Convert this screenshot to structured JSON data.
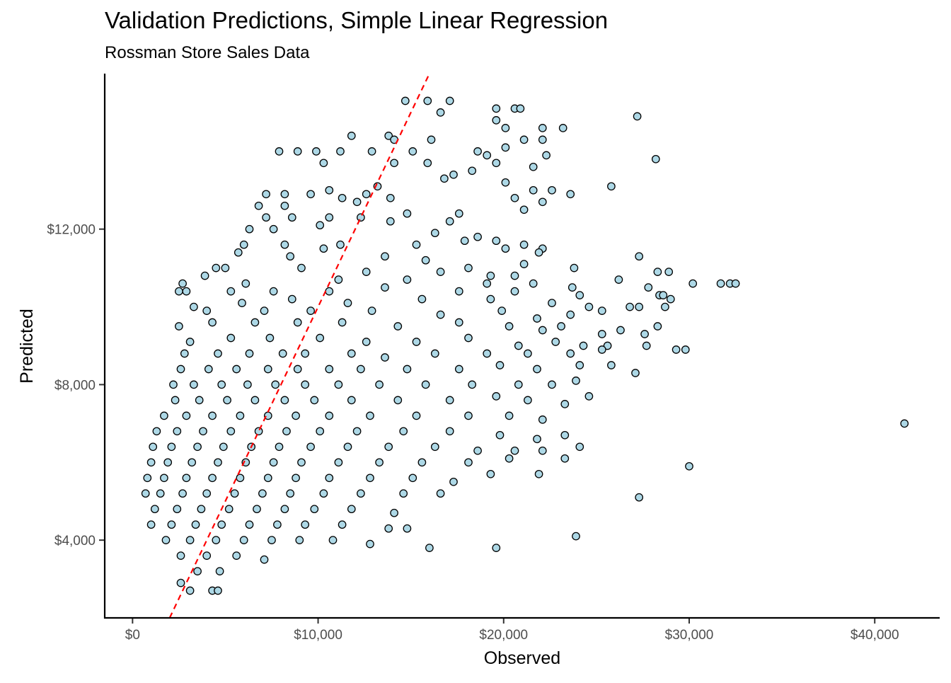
{
  "chart_data": {
    "type": "scatter",
    "title": "Validation Predictions, Simple Linear Regression",
    "subtitle": "Rossman Store Sales Data",
    "xlabel": "Observed",
    "ylabel": "Predicted",
    "xlim": [
      -1500,
      43500
    ],
    "ylim": [
      2000,
      16000
    ],
    "x_ticks": [
      0,
      10000,
      20000,
      30000,
      40000
    ],
    "x_tick_labels": [
      "$0",
      "$10,000",
      "$20,000",
      "$30,000",
      "$40,000"
    ],
    "y_ticks": [
      4000,
      8000,
      12000
    ],
    "y_tick_labels": [
      "$4,000",
      "$8,000",
      "$12,000"
    ],
    "grid": false,
    "legend": "none",
    "point_fill": "#add8e6",
    "point_stroke": "#000000",
    "reference_line": {
      "slope": 1,
      "intercept": 0,
      "color": "#ff0000",
      "style": "dashed"
    },
    "points": [
      [
        14700,
        15300
      ],
      [
        15900,
        15300
      ],
      [
        17100,
        15300
      ],
      [
        16600,
        15000
      ],
      [
        19600,
        15100
      ],
      [
        20600,
        15100
      ],
      [
        20900,
        15100
      ],
      [
        27200,
        14900
      ],
      [
        19600,
        14800
      ],
      [
        20100,
        14600
      ],
      [
        22100,
        14600
      ],
      [
        23200,
        14600
      ],
      [
        11800,
        14400
      ],
      [
        13800,
        14400
      ],
      [
        14100,
        14300
      ],
      [
        16100,
        14300
      ],
      [
        20100,
        14100
      ],
      [
        21100,
        14300
      ],
      [
        22100,
        14300
      ],
      [
        7900,
        14000
      ],
      [
        8900,
        14000
      ],
      [
        9900,
        14000
      ],
      [
        11200,
        14000
      ],
      [
        12900,
        14000
      ],
      [
        15100,
        14000
      ],
      [
        18600,
        14000
      ],
      [
        19100,
        13900
      ],
      [
        22300,
        13900
      ],
      [
        28200,
        13800
      ],
      [
        10300,
        13700
      ],
      [
        14100,
        13700
      ],
      [
        15900,
        13700
      ],
      [
        19600,
        13700
      ],
      [
        21600,
        13600
      ],
      [
        13200,
        13100
      ],
      [
        16800,
        13300
      ],
      [
        17300,
        13400
      ],
      [
        18300,
        13500
      ],
      [
        20100,
        13200
      ],
      [
        25800,
        13100
      ],
      [
        7200,
        12900
      ],
      [
        8200,
        12900
      ],
      [
        9600,
        12900
      ],
      [
        10600,
        13000
      ],
      [
        11300,
        12800
      ],
      [
        12600,
        12900
      ],
      [
        21600,
        13000
      ],
      [
        22600,
        13000
      ],
      [
        23600,
        12900
      ],
      [
        6800,
        12600
      ],
      [
        8200,
        12600
      ],
      [
        12100,
        12700
      ],
      [
        13900,
        12800
      ],
      [
        20600,
        12800
      ],
      [
        22100,
        12700
      ],
      [
        7200,
        12300
      ],
      [
        8600,
        12300
      ],
      [
        10600,
        12300
      ],
      [
        12300,
        12300
      ],
      [
        14800,
        12400
      ],
      [
        17600,
        12400
      ],
      [
        21100,
        12500
      ],
      [
        6300,
        12000
      ],
      [
        7600,
        12000
      ],
      [
        10100,
        12100
      ],
      [
        13900,
        12200
      ],
      [
        17100,
        12200
      ],
      [
        16300,
        11900
      ],
      [
        18600,
        11800
      ],
      [
        19600,
        11700
      ],
      [
        21100,
        11600
      ],
      [
        22100,
        11500
      ],
      [
        6000,
        11600
      ],
      [
        8200,
        11600
      ],
      [
        11200,
        11600
      ],
      [
        15300,
        11600
      ],
      [
        17900,
        11700
      ],
      [
        20100,
        11500
      ],
      [
        21900,
        11400
      ],
      [
        5700,
        11400
      ],
      [
        8500,
        11300
      ],
      [
        10300,
        11500
      ],
      [
        13600,
        11300
      ],
      [
        15800,
        11200
      ],
      [
        18100,
        11000
      ],
      [
        21100,
        11100
      ],
      [
        27300,
        11300
      ],
      [
        23800,
        11000
      ],
      [
        4500,
        11000
      ],
      [
        5000,
        11000
      ],
      [
        9100,
        11000
      ],
      [
        12600,
        10900
      ],
      [
        16600,
        10900
      ],
      [
        19300,
        10800
      ],
      [
        20600,
        10800
      ],
      [
        26200,
        10700
      ],
      [
        28300,
        10900
      ],
      [
        28900,
        10900
      ],
      [
        2700,
        10600
      ],
      [
        3900,
        10800
      ],
      [
        6100,
        10600
      ],
      [
        11100,
        10700
      ],
      [
        14800,
        10700
      ],
      [
        19100,
        10600
      ],
      [
        21600,
        10600
      ],
      [
        23700,
        10500
      ],
      [
        27800,
        10500
      ],
      [
        30200,
        10600
      ],
      [
        31700,
        10600
      ],
      [
        32200,
        10600
      ],
      [
        32500,
        10600
      ],
      [
        2500,
        10400
      ],
      [
        2900,
        10400
      ],
      [
        5300,
        10400
      ],
      [
        7600,
        10400
      ],
      [
        10600,
        10400
      ],
      [
        13600,
        10500
      ],
      [
        17600,
        10400
      ],
      [
        20600,
        10400
      ],
      [
        24100,
        10300
      ],
      [
        28400,
        10300
      ],
      [
        28600,
        10300
      ],
      [
        3300,
        10000
      ],
      [
        5900,
        10100
      ],
      [
        8600,
        10200
      ],
      [
        11600,
        10100
      ],
      [
        15600,
        10200
      ],
      [
        19300,
        10200
      ],
      [
        22600,
        10100
      ],
      [
        25300,
        9900
      ],
      [
        27300,
        10000
      ],
      [
        29000,
        10200
      ],
      [
        4000,
        9900
      ],
      [
        7100,
        9900
      ],
      [
        9600,
        9900
      ],
      [
        12900,
        9900
      ],
      [
        16600,
        9800
      ],
      [
        19900,
        9900
      ],
      [
        21800,
        9700
      ],
      [
        23600,
        9800
      ],
      [
        24600,
        10000
      ],
      [
        26800,
        10000
      ],
      [
        28700,
        10000
      ],
      [
        2500,
        9500
      ],
      [
        4300,
        9600
      ],
      [
        6600,
        9600
      ],
      [
        8900,
        9600
      ],
      [
        11300,
        9600
      ],
      [
        14300,
        9500
      ],
      [
        17600,
        9600
      ],
      [
        20300,
        9500
      ],
      [
        22100,
        9400
      ],
      [
        23100,
        9500
      ],
      [
        25300,
        9300
      ],
      [
        26300,
        9400
      ],
      [
        27600,
        9300
      ],
      [
        28300,
        9500
      ],
      [
        3100,
        9100
      ],
      [
        5300,
        9200
      ],
      [
        7400,
        9200
      ],
      [
        10100,
        9200
      ],
      [
        12600,
        9100
      ],
      [
        15300,
        9100
      ],
      [
        18100,
        9200
      ],
      [
        20800,
        9000
      ],
      [
        22800,
        9100
      ],
      [
        24300,
        9000
      ],
      [
        25600,
        9000
      ],
      [
        27700,
        9000
      ],
      [
        2800,
        8800
      ],
      [
        4600,
        8800
      ],
      [
        6300,
        8800
      ],
      [
        8100,
        8800
      ],
      [
        9300,
        8800
      ],
      [
        11800,
        8800
      ],
      [
        13600,
        8700
      ],
      [
        16300,
        8800
      ],
      [
        19100,
        8800
      ],
      [
        21300,
        8800
      ],
      [
        23600,
        8800
      ],
      [
        25300,
        8900
      ],
      [
        29300,
        8900
      ],
      [
        29800,
        8900
      ],
      [
        2600,
        8400
      ],
      [
        4100,
        8400
      ],
      [
        5600,
        8400
      ],
      [
        7300,
        8400
      ],
      [
        8900,
        8400
      ],
      [
        10600,
        8400
      ],
      [
        12300,
        8400
      ],
      [
        14800,
        8400
      ],
      [
        17600,
        8400
      ],
      [
        19800,
        8500
      ],
      [
        21800,
        8400
      ],
      [
        24100,
        8500
      ],
      [
        25800,
        8500
      ],
      [
        2200,
        8000
      ],
      [
        3300,
        8000
      ],
      [
        4800,
        8000
      ],
      [
        6200,
        8000
      ],
      [
        7700,
        8000
      ],
      [
        9300,
        8000
      ],
      [
        11100,
        8000
      ],
      [
        13300,
        8000
      ],
      [
        15800,
        8000
      ],
      [
        18300,
        8000
      ],
      [
        20800,
        8000
      ],
      [
        22600,
        8000
      ],
      [
        23900,
        8100
      ],
      [
        27100,
        8300
      ],
      [
        2300,
        7600
      ],
      [
        3600,
        7600
      ],
      [
        5100,
        7600
      ],
      [
        6600,
        7600
      ],
      [
        8200,
        7600
      ],
      [
        9800,
        7600
      ],
      [
        11800,
        7600
      ],
      [
        14300,
        7600
      ],
      [
        17100,
        7600
      ],
      [
        19600,
        7700
      ],
      [
        21300,
        7600
      ],
      [
        23300,
        7500
      ],
      [
        24600,
        7700
      ],
      [
        1700,
        7200
      ],
      [
        2900,
        7200
      ],
      [
        4300,
        7200
      ],
      [
        5800,
        7200
      ],
      [
        7300,
        7200
      ],
      [
        8800,
        7200
      ],
      [
        10600,
        7200
      ],
      [
        12800,
        7200
      ],
      [
        15300,
        7200
      ],
      [
        18100,
        7200
      ],
      [
        20300,
        7200
      ],
      [
        22100,
        7100
      ],
      [
        41600,
        7000
      ],
      [
        1300,
        6800
      ],
      [
        2400,
        6800
      ],
      [
        3800,
        6800
      ],
      [
        5300,
        6800
      ],
      [
        6800,
        6800
      ],
      [
        8300,
        6800
      ],
      [
        10100,
        6800
      ],
      [
        12100,
        6800
      ],
      [
        14600,
        6800
      ],
      [
        17100,
        6800
      ],
      [
        19800,
        6700
      ],
      [
        21800,
        6600
      ],
      [
        23300,
        6700
      ],
      [
        1100,
        6400
      ],
      [
        2100,
        6400
      ],
      [
        3500,
        6400
      ],
      [
        4900,
        6400
      ],
      [
        6400,
        6400
      ],
      [
        7900,
        6400
      ],
      [
        9600,
        6400
      ],
      [
        11600,
        6400
      ],
      [
        13800,
        6400
      ],
      [
        16300,
        6400
      ],
      [
        18600,
        6300
      ],
      [
        20600,
        6300
      ],
      [
        22100,
        6300
      ],
      [
        24100,
        6400
      ],
      [
        1000,
        6000
      ],
      [
        1900,
        6000
      ],
      [
        3200,
        6000
      ],
      [
        4600,
        6000
      ],
      [
        6100,
        6000
      ],
      [
        7600,
        6000
      ],
      [
        9100,
        6000
      ],
      [
        11100,
        6000
      ],
      [
        13300,
        6000
      ],
      [
        15600,
        6000
      ],
      [
        18100,
        6000
      ],
      [
        20300,
        6100
      ],
      [
        23300,
        6100
      ],
      [
        30000,
        5900
      ],
      [
        800,
        5600
      ],
      [
        1700,
        5600
      ],
      [
        2900,
        5600
      ],
      [
        4300,
        5600
      ],
      [
        5800,
        5600
      ],
      [
        7300,
        5600
      ],
      [
        8800,
        5600
      ],
      [
        10600,
        5600
      ],
      [
        12800,
        5600
      ],
      [
        15100,
        5600
      ],
      [
        17300,
        5500
      ],
      [
        19300,
        5700
      ],
      [
        21900,
        5700
      ],
      [
        700,
        5200
      ],
      [
        1500,
        5200
      ],
      [
        2700,
        5200
      ],
      [
        4000,
        5200
      ],
      [
        5500,
        5200
      ],
      [
        7000,
        5200
      ],
      [
        8500,
        5200
      ],
      [
        10300,
        5200
      ],
      [
        12300,
        5200
      ],
      [
        14600,
        5200
      ],
      [
        16600,
        5200
      ],
      [
        27300,
        5100
      ],
      [
        1200,
        4800
      ],
      [
        2400,
        4800
      ],
      [
        3700,
        4800
      ],
      [
        5200,
        4800
      ],
      [
        6700,
        4800
      ],
      [
        8200,
        4800
      ],
      [
        9800,
        4800
      ],
      [
        11800,
        4800
      ],
      [
        14100,
        4700
      ],
      [
        1000,
        4400
      ],
      [
        2100,
        4400
      ],
      [
        3400,
        4400
      ],
      [
        4800,
        4400
      ],
      [
        6300,
        4400
      ],
      [
        7800,
        4400
      ],
      [
        9300,
        4400
      ],
      [
        11300,
        4400
      ],
      [
        13800,
        4300
      ],
      [
        14800,
        4300
      ],
      [
        1800,
        4000
      ],
      [
        3100,
        4000
      ],
      [
        4500,
        4000
      ],
      [
        6000,
        4000
      ],
      [
        7500,
        4000
      ],
      [
        9000,
        4000
      ],
      [
        10800,
        4000
      ],
      [
        12800,
        3900
      ],
      [
        16000,
        3800
      ],
      [
        19600,
        3800
      ],
      [
        23900,
        4100
      ],
      [
        2600,
        3600
      ],
      [
        4000,
        3600
      ],
      [
        5600,
        3600
      ],
      [
        7100,
        3500
      ],
      [
        3500,
        3200
      ],
      [
        4700,
        3200
      ],
      [
        2600,
        2900
      ],
      [
        3100,
        2700
      ],
      [
        4300,
        2700
      ],
      [
        4600,
        2700
      ]
    ]
  }
}
